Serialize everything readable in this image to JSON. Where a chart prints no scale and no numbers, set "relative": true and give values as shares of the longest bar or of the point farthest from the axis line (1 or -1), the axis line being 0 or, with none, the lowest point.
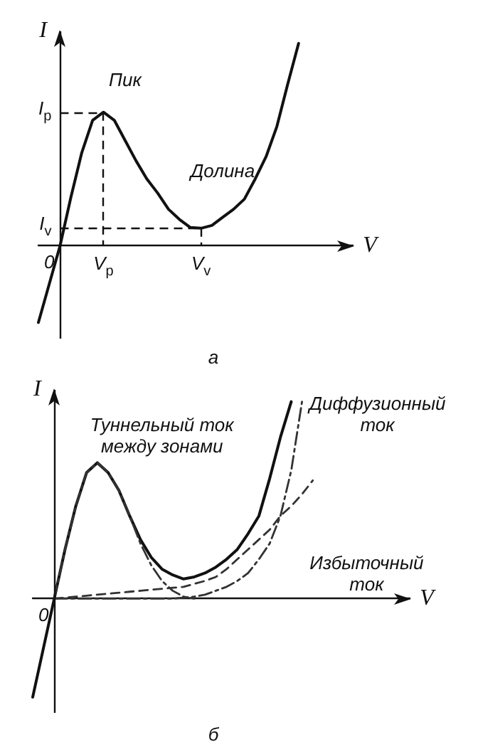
{
  "chart_data": [
    {
      "type": "line",
      "relative": true,
      "xlabel": "V",
      "ylabel": "I",
      "line_style": "solid",
      "categories": [
        null,
        null,
        null,
        null,
        null,
        null,
        null,
        null,
        null,
        null,
        null,
        null,
        null,
        null,
        null,
        null,
        null,
        null,
        null,
        null,
        null,
        null,
        null,
        null,
        null,
        null,
        null,
        null,
        null,
        null
      ],
      "ref_lines": [
        {
          "axis": "y",
          "value": 0.66,
          "label": "I$_{p}$",
          "line_style": "dashed"
        },
        {
          "axis": "y",
          "value": 0.086,
          "label": "I$_{v}$",
          "line_style": "dashed"
        }
      ],
      "annotations": [
        "Пик",
        "Долина",
        "V$_{p}$",
        "V$_{v}$",
        "0",
        "а"
      ],
      "series": [
        {
          "color": "#111111",
          "values": [
            -0.38,
            -0.19,
            0,
            0.24,
            0.46,
            0.62,
            0.66,
            0.62,
            0.52,
            0.42,
            0.33,
            0.26,
            0.18,
            0.13,
            0.09,
            0.086,
            0.1,
            0.14,
            0.18,
            0.23,
            0.33,
            0.44,
            0.59,
            0.8,
            1.0,
            null,
            null,
            null,
            null,
            null
          ]
        }
      ]
    },
    {
      "type": "line",
      "relative": true,
      "xlabel": "V",
      "ylabel": "I",
      "categories": [
        null,
        null,
        null,
        null,
        null,
        null,
        null,
        null,
        null,
        null,
        null,
        null,
        null,
        null,
        null,
        null,
        null,
        null,
        null,
        null,
        null,
        null,
        null,
        null,
        null,
        null,
        null,
        null,
        null,
        null,
        null,
        null,
        null,
        null,
        null,
        null
      ],
      "annotations": [
        "Туннельный ток\nмежду зонами",
        "Диффузионный\nток",
        "Избыточный\nток",
        "0",
        "б"
      ],
      "series": [
        {
          "color": "#111111",
          "line_style": "solid",
          "values": [
            -0.5,
            -0.25,
            0,
            0.25,
            0.47,
            0.64,
            0.69,
            0.64,
            0.55,
            0.42,
            0.3,
            0.21,
            0.15,
            0.12,
            0.1,
            0.11,
            0.13,
            0.16,
            0.2,
            0.25,
            0.33,
            0.42,
            0.61,
            0.82,
            1.0,
            null,
            null,
            null,
            null,
            null,
            null,
            null,
            null,
            null,
            null,
            null
          ]
        },
        {
          "color": "#333333",
          "line_style": "dashdot",
          "values": [
            null,
            null,
            0,
            0.25,
            0.47,
            0.64,
            0.69,
            0.64,
            0.55,
            0.42,
            0.28,
            0.17,
            0.09,
            0.04,
            0.01,
            0,
            null,
            null,
            null,
            null,
            null,
            null,
            null,
            null,
            null,
            null,
            null,
            null,
            null,
            null,
            null,
            null,
            null,
            null,
            null,
            null
          ]
        },
        {
          "color": "#333333",
          "line_style": "dashed",
          "values": [
            null,
            null,
            0,
            0.005,
            0.01,
            0.015,
            0.02,
            0.025,
            0.03,
            0.035,
            0.04,
            0.045,
            0.05,
            0.055,
            0.06,
            0.075,
            0.09,
            0.11,
            0.15,
            0.2,
            0.25,
            0.3,
            0.35,
            0.42,
            0.47,
            0.53,
            0.6,
            null,
            null,
            null,
            null,
            null,
            null,
            null,
            null,
            null
          ]
        },
        {
          "color": "#333333",
          "line_style": "dashdot",
          "values": [
            null,
            null,
            0,
            0,
            0,
            0,
            0,
            0,
            0,
            0,
            0,
            0,
            0,
            0,
            0.005,
            0.01,
            0.02,
            0.04,
            0.06,
            0.09,
            0.13,
            0.2,
            0.28,
            0.42,
            0.65,
            1.0,
            null,
            null,
            null,
            null,
            null,
            null,
            null,
            null,
            null,
            null
          ]
        }
      ]
    }
  ]
}
